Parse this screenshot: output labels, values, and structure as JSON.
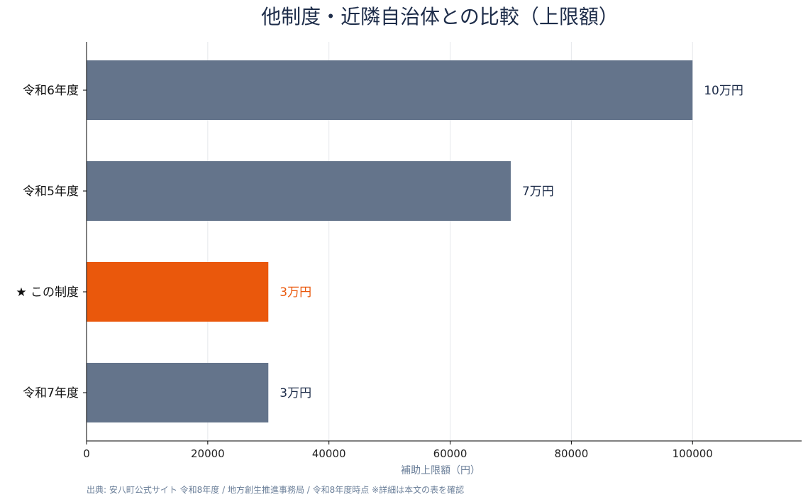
{
  "chart_data": {
    "type": "bar",
    "orientation": "horizontal",
    "title": "他制度・近隣自治体との比較（上限額）",
    "xlabel": "補助上限額（円）",
    "ylabel": "",
    "categories": [
      "令和6年度",
      "令和5年度",
      "★ この制度",
      "令和7年度"
    ],
    "values": [
      100000,
      70000,
      30000,
      30000
    ],
    "value_labels": [
      "10万円",
      "7万円",
      "3万円",
      "3万円"
    ],
    "highlight_index": 2,
    "xlim": [
      0,
      118000
    ],
    "xticks": [
      0,
      20000,
      40000,
      60000,
      80000,
      100000
    ],
    "grid": "vertical",
    "colors": {
      "default_bar": "#64748b",
      "highlight_bar": "#ea580c",
      "default_label": "#1e2d4a",
      "highlight_label": "#ea580c",
      "grid": "#e5e7eb",
      "axis": "#000000"
    }
  },
  "source_note": "出典: 安八町公式サイト 令和8年度 / 地方創生推進事務局 / 令和8年度時点 ※詳細は本文の表を確認"
}
